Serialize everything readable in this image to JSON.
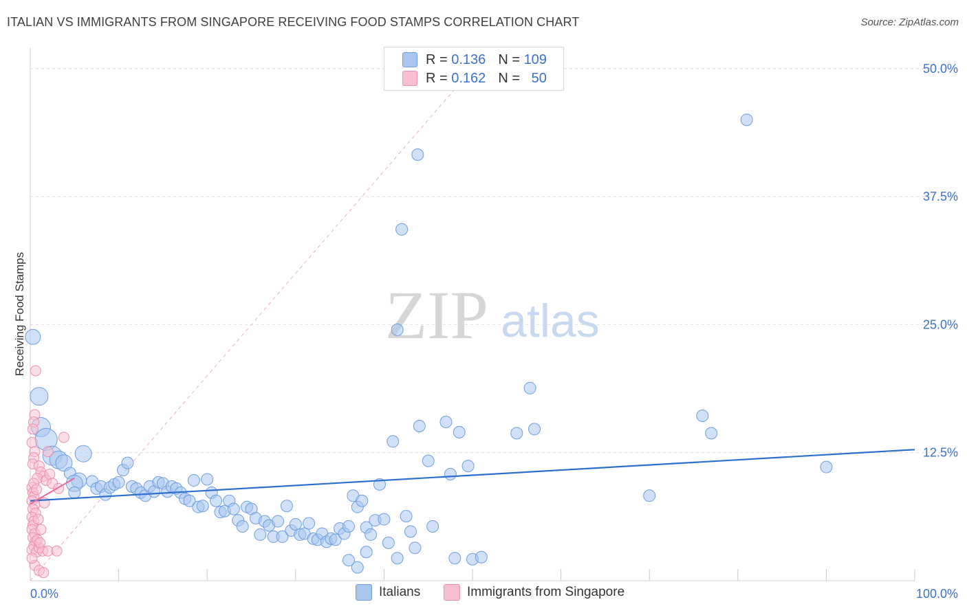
{
  "header": {
    "title": "ITALIAN VS IMMIGRANTS FROM SINGAPORE RECEIVING FOOD STAMPS CORRELATION CHART",
    "source": "Source: ZipAtlas.com"
  },
  "watermark": {
    "zip": "ZIP",
    "atlas": "atlas"
  },
  "legend": {
    "rows": [
      {
        "r_label": "R =",
        "r_value": "0.136",
        "n_label": "N =",
        "n_value": "109",
        "color": "#6fa0e0"
      },
      {
        "r_label": "R =",
        "r_value": "0.162",
        "n_label": "N =",
        "n_value": "50",
        "color": "#f08cb0"
      }
    ]
  },
  "bottom_legend": {
    "italians": "Italians",
    "singapore": "Immigrants from Singapore"
  },
  "colors": {
    "blue_fill": "#a9c6ee",
    "blue_stroke": "#6e9ee0",
    "blue_line": "#2c6fcf",
    "pink_fill": "#f7bfd1",
    "pink_stroke": "#ee8db0",
    "pink_line": "#e8709a",
    "axis_label": "#3b72c8"
  },
  "chart_data": {
    "type": "scatter",
    "title": "ITALIAN VS IMMIGRANTS FROM SINGAPORE RECEIVING FOOD STAMPS CORRELATION CHART",
    "xlabel": "",
    "ylabel": "Receiving Food Stamps",
    "xlim": [
      0,
      100
    ],
    "ylim": [
      0,
      52
    ],
    "x_tick_labels": [
      "0.0%",
      "100.0%"
    ],
    "y_ticks": [
      12.5,
      25.0,
      37.5,
      50.0
    ],
    "y_tick_labels": [
      "12.5%",
      "25.0%",
      "37.5%",
      "50.0%"
    ],
    "grid": true,
    "series": [
      {
        "name": "Italians",
        "R": 0.136,
        "N": 109,
        "trend": {
          "x0": 0,
          "y0": 7.8,
          "x1": 100,
          "y1": 12.8
        },
        "points": [
          [
            0.3,
            23.8
          ],
          [
            1.0,
            18.0
          ],
          [
            1.2,
            15.0
          ],
          [
            1.8,
            13.8
          ],
          [
            2.5,
            12.2
          ],
          [
            3.2,
            11.8
          ],
          [
            3.8,
            11.5
          ],
          [
            4.5,
            10.5
          ],
          [
            5.5,
            9.8
          ],
          [
            6.0,
            12.4
          ],
          [
            5.0,
            9.5
          ],
          [
            7.0,
            9.7
          ],
          [
            7.5,
            9.0
          ],
          [
            8.0,
            9.2
          ],
          [
            8.5,
            8.4
          ],
          [
            9.0,
            9.1
          ],
          [
            9.5,
            9.4
          ],
          [
            10.0,
            9.6
          ],
          [
            10.5,
            10.8
          ],
          [
            11.0,
            11.5
          ],
          [
            11.5,
            9.2
          ],
          [
            12.0,
            9.0
          ],
          [
            12.5,
            8.6
          ],
          [
            13.0,
            8.3
          ],
          [
            13.5,
            9.2
          ],
          [
            14.0,
            8.7
          ],
          [
            14.5,
            9.6
          ],
          [
            15.0,
            9.5
          ],
          [
            15.5,
            8.7
          ],
          [
            16.0,
            9.2
          ],
          [
            16.5,
            9.0
          ],
          [
            17.0,
            8.6
          ],
          [
            17.5,
            8.0
          ],
          [
            18.0,
            7.8
          ],
          [
            18.5,
            9.8
          ],
          [
            19.0,
            7.2
          ],
          [
            19.5,
            7.3
          ],
          [
            20.0,
            9.9
          ],
          [
            20.5,
            8.6
          ],
          [
            21.0,
            7.8
          ],
          [
            21.5,
            6.7
          ],
          [
            22.0,
            6.8
          ],
          [
            22.5,
            7.8
          ],
          [
            23.0,
            7.0
          ],
          [
            23.5,
            5.9
          ],
          [
            24.0,
            5.3
          ],
          [
            24.5,
            7.2
          ],
          [
            25.0,
            7.0
          ],
          [
            25.5,
            6.1
          ],
          [
            26.0,
            4.5
          ],
          [
            26.5,
            5.8
          ],
          [
            27.0,
            5.4
          ],
          [
            27.5,
            4.3
          ],
          [
            28.0,
            5.8
          ],
          [
            28.5,
            4.3
          ],
          [
            29.0,
            7.3
          ],
          [
            29.5,
            4.9
          ],
          [
            30.0,
            5.5
          ],
          [
            30.5,
            4.5
          ],
          [
            31.0,
            4.6
          ],
          [
            31.5,
            5.6
          ],
          [
            32.0,
            4.1
          ],
          [
            32.5,
            4.0
          ],
          [
            33.0,
            4.6
          ],
          [
            33.5,
            3.8
          ],
          [
            34.0,
            4.1
          ],
          [
            34.5,
            4.0
          ],
          [
            35.0,
            5.1
          ],
          [
            35.5,
            4.6
          ],
          [
            36.0,
            5.3
          ],
          [
            36.5,
            8.3
          ],
          [
            37.0,
            7.2
          ],
          [
            37.5,
            7.8
          ],
          [
            38.0,
            5.2
          ],
          [
            38.5,
            4.5
          ],
          [
            39.0,
            5.9
          ],
          [
            39.5,
            9.4
          ],
          [
            40.0,
            6.0
          ],
          [
            38.0,
            2.8
          ],
          [
            37.0,
            1.3
          ],
          [
            36.0,
            2.0
          ],
          [
            40.5,
            3.7
          ],
          [
            41.0,
            13.6
          ],
          [
            41.5,
            2.2
          ],
          [
            42.5,
            6.3
          ],
          [
            43.0,
            4.8
          ],
          [
            43.8,
            41.6
          ],
          [
            43.5,
            3.2
          ],
          [
            44.0,
            15.1
          ],
          [
            45.0,
            11.7
          ],
          [
            45.5,
            5.3
          ],
          [
            47.0,
            15.5
          ],
          [
            47.5,
            10.4
          ],
          [
            48.0,
            2.2
          ],
          [
            48.5,
            14.5
          ],
          [
            49.5,
            11.2
          ],
          [
            50.0,
            2.1
          ],
          [
            51.0,
            2.3
          ],
          [
            55.0,
            14.4
          ],
          [
            56.5,
            18.8
          ],
          [
            57.0,
            14.8
          ],
          [
            42.0,
            34.3
          ],
          [
            41.5,
            24.5
          ],
          [
            70.0,
            8.3
          ],
          [
            76.0,
            16.1
          ],
          [
            77.0,
            14.4
          ],
          [
            81.0,
            45.0
          ],
          [
            90.0,
            11.1
          ],
          [
            5.0,
            8.6
          ]
        ]
      },
      {
        "name": "Immigrants from Singapore",
        "R": 0.162,
        "N": 50,
        "trend": {
          "x0": 0,
          "y0": 7.5,
          "x1": 5.0,
          "y1": 10.0
        },
        "points": [
          [
            0.6,
            20.5
          ],
          [
            0.5,
            16.2
          ],
          [
            0.4,
            15.5
          ],
          [
            0.3,
            14.8
          ],
          [
            0.2,
            13.5
          ],
          [
            0.5,
            12.6
          ],
          [
            0.4,
            12.0
          ],
          [
            0.3,
            11.4
          ],
          [
            1.0,
            11.2
          ],
          [
            1.2,
            10.6
          ],
          [
            1.5,
            10.2
          ],
          [
            0.8,
            10.0
          ],
          [
            1.8,
            9.8
          ],
          [
            2.2,
            10.4
          ],
          [
            3.8,
            14.0
          ],
          [
            2.0,
            12.6
          ],
          [
            0.2,
            9.1
          ],
          [
            0.3,
            8.6
          ],
          [
            0.4,
            8.2
          ],
          [
            0.2,
            7.8
          ],
          [
            0.5,
            7.4
          ],
          [
            0.3,
            7.0
          ],
          [
            0.6,
            6.6
          ],
          [
            0.2,
            6.2
          ],
          [
            0.4,
            5.8
          ],
          [
            0.3,
            5.4
          ],
          [
            0.2,
            5.0
          ],
          [
            0.5,
            4.6
          ],
          [
            0.3,
            4.2
          ],
          [
            0.6,
            3.8
          ],
          [
            0.4,
            3.4
          ],
          [
            0.2,
            3.0
          ],
          [
            0.7,
            2.8
          ],
          [
            1.0,
            3.2
          ],
          [
            1.4,
            2.9
          ],
          [
            2.0,
            2.9
          ],
          [
            3.0,
            2.9
          ],
          [
            0.5,
            1.5
          ],
          [
            1.0,
            1.0
          ],
          [
            1.5,
            0.8
          ],
          [
            0.8,
            4.0
          ],
          [
            1.2,
            5.0
          ],
          [
            0.9,
            6.0
          ],
          [
            1.6,
            7.6
          ],
          [
            0.4,
            9.5
          ],
          [
            0.7,
            8.9
          ],
          [
            2.5,
            9.5
          ],
          [
            3.2,
            9.0
          ],
          [
            1.1,
            3.7
          ],
          [
            0.2,
            2.2
          ]
        ]
      }
    ]
  }
}
